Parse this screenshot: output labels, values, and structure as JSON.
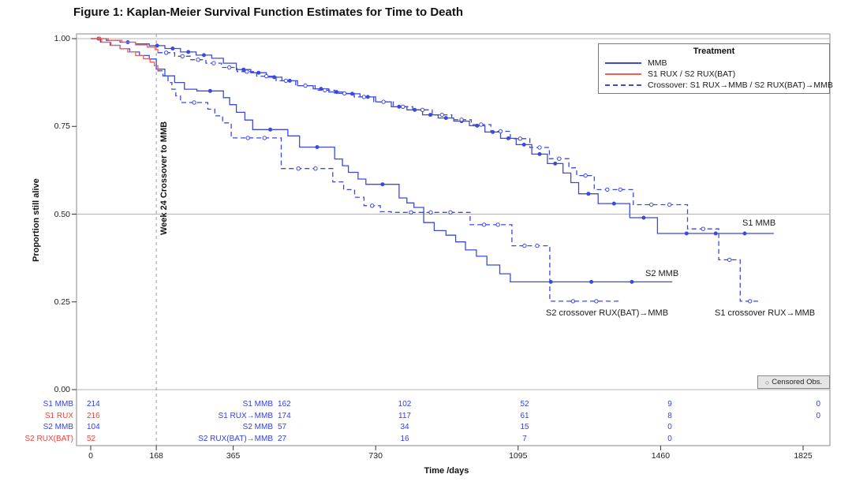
{
  "title": "Figure 1: Kaplan-Meier Survival Function Estimates for Time to Death",
  "axes": {
    "x_label": "Time /days",
    "y_label": "Proportion still alive",
    "x_ticks": [
      0,
      168,
      365,
      730,
      1095,
      1460,
      1825
    ],
    "y_ticks": [
      "1.00",
      "0.75",
      "0.50",
      "0.25",
      "0.00"
    ]
  },
  "legend": {
    "title": "Treatment",
    "items": [
      {
        "label": "MMB",
        "style": "solid",
        "color_key": "blue"
      },
      {
        "label": "S1 RUX / S2 RUX(BAT)",
        "style": "solid",
        "color_key": "red"
      },
      {
        "label": "Crossover: S1 RUX→MMB / S2 RUX(BAT)→MMB",
        "style": "dashed",
        "color_key": "blue"
      }
    ]
  },
  "annotations": {
    "vline_label": "Week 24 Crossover to MMB",
    "s1_mmb": "S1 MMB",
    "s2_mmb": "S2 MMB",
    "s2_crossover": "S2 crossover RUX(BAT)→MMB",
    "s1_crossover": "S1 crossover RUX→MMB"
  },
  "censored_box": {
    "label": "Censored Obs.",
    "marker": "○"
  },
  "risk_table": {
    "rows": [
      {
        "label0": "S1 MMB",
        "color": "blue",
        "v0": "214",
        "label365": "S1 MMB",
        "v365": "162",
        "v730": "102",
        "v1095": "52",
        "v1460": "9",
        "v1825": "0"
      },
      {
        "label0": "S1 RUX",
        "color": "red",
        "v0": "216",
        "label365": "S1 RUX→MMB",
        "v365": "174",
        "v730": "117",
        "v1095": "61",
        "v1460": "8",
        "v1825": "0"
      },
      {
        "label0": "S2 MMB",
        "color": "blue",
        "v0": "104",
        "label365": "S2 MMB",
        "v365": "57",
        "v730": "34",
        "v1095": "15",
        "v1460": "0",
        "v1825": ""
      },
      {
        "label0": "S2 RUX(BAT)",
        "color": "red",
        "v0": "52",
        "label365": "S2 RUX(BAT)→MMB",
        "v365": "27",
        "v730": "16",
        "v1095": "7",
        "v1460": "0",
        "v1825": ""
      }
    ]
  },
  "chart_data": {
    "type": "line",
    "subtype": "step-survival",
    "title": "Figure 1: Kaplan-Meier Survival Function Estimates for Time to Death",
    "xlabel": "Time /days",
    "ylabel": "Proportion still alive",
    "xlim": [
      0,
      1825
    ],
    "ylim": [
      0.0,
      1.0
    ],
    "reference_lines": {
      "horizontal": [
        1.0,
        0.5,
        0.0
      ],
      "vertical_dashed_at_x": 168
    },
    "colors": {
      "blue": "#3c49e1",
      "red": "#ec6056",
      "text_blue": "#3340e8",
      "text_red": "#f04438",
      "grid": "#b3b3b3",
      "frame": "#8a8a8a",
      "axis": "#333333"
    },
    "series": [
      {
        "name": "S1 MMB",
        "color_key": "blue",
        "dash": false,
        "points": [
          [
            0,
            1.0
          ],
          [
            40,
            0.995
          ],
          [
            75,
            0.99
          ],
          [
            115,
            0.985
          ],
          [
            150,
            0.98
          ],
          [
            190,
            0.972
          ],
          [
            230,
            0.962
          ],
          [
            270,
            0.953
          ],
          [
            310,
            0.944
          ],
          [
            340,
            0.93
          ],
          [
            373,
            0.912
          ],
          [
            410,
            0.903
          ],
          [
            450,
            0.89
          ],
          [
            490,
            0.88
          ],
          [
            530,
            0.866
          ],
          [
            570,
            0.857
          ],
          [
            610,
            0.848
          ],
          [
            650,
            0.843
          ],
          [
            690,
            0.834
          ],
          [
            730,
            0.82
          ],
          [
            770,
            0.806
          ],
          [
            810,
            0.797
          ],
          [
            850,
            0.783
          ],
          [
            890,
            0.774
          ],
          [
            930,
            0.765
          ],
          [
            970,
            0.752
          ],
          [
            1010,
            0.734
          ],
          [
            1050,
            0.716
          ],
          [
            1090,
            0.698
          ],
          [
            1130,
            0.671
          ],
          [
            1170,
            0.644
          ],
          [
            1210,
            0.617
          ],
          [
            1230,
            0.59
          ],
          [
            1250,
            0.558
          ],
          [
            1300,
            0.53
          ],
          [
            1381,
            0.49
          ],
          [
            1452,
            0.445
          ],
          [
            1750,
            0.445
          ]
        ]
      },
      {
        "name": "S1 RUX",
        "color_key": "red",
        "dash": false,
        "points": [
          [
            0,
            1.0
          ],
          [
            45,
            0.995
          ],
          [
            80,
            0.99
          ],
          [
            115,
            0.982
          ],
          [
            145,
            0.976
          ],
          [
            165,
            0.969
          ],
          [
            172,
            0.96
          ],
          [
            180,
            0.96
          ]
        ]
      },
      {
        "name": "S1 crossover RUX->MMB",
        "color_key": "blue",
        "dash": true,
        "points": [
          [
            172,
            0.96
          ],
          [
            215,
            0.95
          ],
          [
            255,
            0.94
          ],
          [
            295,
            0.93
          ],
          [
            335,
            0.918
          ],
          [
            375,
            0.906
          ],
          [
            425,
            0.893
          ],
          [
            475,
            0.88
          ],
          [
            525,
            0.866
          ],
          [
            575,
            0.853
          ],
          [
            625,
            0.844
          ],
          [
            675,
            0.834
          ],
          [
            725,
            0.82
          ],
          [
            775,
            0.806
          ],
          [
            825,
            0.797
          ],
          [
            875,
            0.783
          ],
          [
            925,
            0.769
          ],
          [
            975,
            0.755
          ],
          [
            1025,
            0.736
          ],
          [
            1075,
            0.715
          ],
          [
            1125,
            0.69
          ],
          [
            1175,
            0.658
          ],
          [
            1225,
            0.632
          ],
          [
            1245,
            0.61
          ],
          [
            1290,
            0.57
          ],
          [
            1390,
            0.527
          ],
          [
            1529,
            0.458
          ],
          [
            1609,
            0.37
          ],
          [
            1664,
            0.252
          ],
          [
            1714,
            0.252
          ]
        ]
      },
      {
        "name": "S2 MMB",
        "color_key": "blue",
        "dash": false,
        "points": [
          [
            0,
            1.0
          ],
          [
            25,
            0.99
          ],
          [
            50,
            0.981
          ],
          [
            75,
            0.971
          ],
          [
            100,
            0.962
          ],
          [
            125,
            0.952
          ],
          [
            150,
            0.942
          ],
          [
            168,
            0.913
          ],
          [
            190,
            0.894
          ],
          [
            215,
            0.875
          ],
          [
            240,
            0.856
          ],
          [
            272,
            0.851
          ],
          [
            340,
            0.832
          ],
          [
            356,
            0.812
          ],
          [
            373,
            0.79
          ],
          [
            395,
            0.768
          ],
          [
            415,
            0.741
          ],
          [
            505,
            0.723
          ],
          [
            535,
            0.691
          ],
          [
            625,
            0.657
          ],
          [
            645,
            0.638
          ],
          [
            660,
            0.619
          ],
          [
            685,
            0.6
          ],
          [
            705,
            0.585
          ],
          [
            790,
            0.546
          ],
          [
            810,
            0.532
          ],
          [
            828,
            0.519
          ],
          [
            853,
            0.476
          ],
          [
            880,
            0.453
          ],
          [
            910,
            0.44
          ],
          [
            935,
            0.421
          ],
          [
            960,
            0.398
          ],
          [
            988,
            0.38
          ],
          [
            1015,
            0.355
          ],
          [
            1048,
            0.33
          ],
          [
            1075,
            0.307
          ],
          [
            1490,
            0.307
          ]
        ]
      },
      {
        "name": "S2 RUX(BAT)",
        "color_key": "red",
        "dash": false,
        "points": [
          [
            0,
            1.0
          ],
          [
            28,
            0.99
          ],
          [
            52,
            0.981
          ],
          [
            75,
            0.971
          ],
          [
            95,
            0.962
          ],
          [
            115,
            0.952
          ],
          [
            135,
            0.943
          ],
          [
            152,
            0.933
          ],
          [
            163,
            0.923
          ],
          [
            172,
            0.908
          ],
          [
            180,
            0.908
          ]
        ]
      },
      {
        "name": "S2 crossover RUX(BAT)->MMB",
        "color_key": "blue",
        "dash": true,
        "points": [
          [
            172,
            0.908
          ],
          [
            185,
            0.894
          ],
          [
            198,
            0.875
          ],
          [
            208,
            0.856
          ],
          [
            218,
            0.837
          ],
          [
            230,
            0.818
          ],
          [
            300,
            0.799
          ],
          [
            318,
            0.78
          ],
          [
            338,
            0.76
          ],
          [
            360,
            0.717
          ],
          [
            488,
            0.63
          ],
          [
            620,
            0.592
          ],
          [
            648,
            0.57
          ],
          [
            676,
            0.548
          ],
          [
            700,
            0.524
          ],
          [
            742,
            0.507
          ],
          [
            770,
            0.505
          ],
          [
            972,
            0.47
          ],
          [
            1079,
            0.41
          ],
          [
            1176,
            0.252
          ],
          [
            1355,
            0.252
          ]
        ]
      }
    ],
    "at_risk_table": {
      "times": [
        0,
        365,
        730,
        1095,
        1460,
        1825
      ],
      "groups": [
        {
          "labels": [
            "S1 MMB",
            "S1 MMB"
          ],
          "counts": [
            214,
            162,
            102,
            52,
            9,
            0
          ]
        },
        {
          "labels": [
            "S1 RUX",
            "S1 RUX→MMB"
          ],
          "counts": [
            216,
            174,
            117,
            61,
            8,
            0
          ]
        },
        {
          "labels": [
            "S2 MMB",
            "S2 MMB"
          ],
          "counts": [
            104,
            57,
            34,
            15,
            0,
            null
          ]
        },
        {
          "labels": [
            "S2 RUX(BAT)",
            "S2 RUX(BAT)→MMB"
          ],
          "counts": [
            52,
            27,
            16,
            7,
            0,
            null
          ]
        }
      ]
    }
  }
}
